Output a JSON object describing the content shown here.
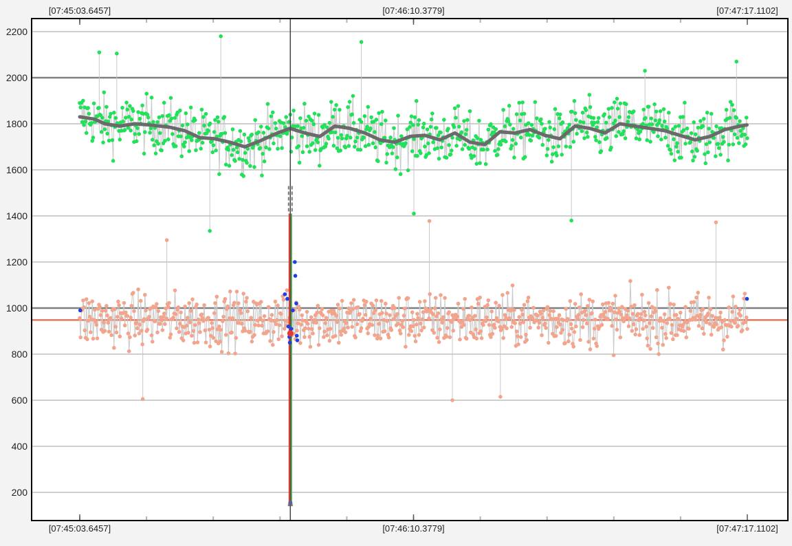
{
  "chart_data": {
    "type": "scatter",
    "title": "",
    "xlabel": "",
    "ylabel": "",
    "ylim": [
      100,
      2250
    ],
    "y_ticks": [
      200,
      400,
      600,
      800,
      1000,
      1200,
      1400,
      1600,
      1800,
      2000,
      2200
    ],
    "x_tick_labels_top": [
      "[07:45:03.6457]",
      "[07:46:10.3779]",
      "[07:47:17.1102]"
    ],
    "x_tick_labels_bottom": [
      "[07:45:03.6457]",
      "[07:46:10.3779]",
      "[07:47:17.1102]"
    ],
    "x_range_seconds": [
      0,
      133.4645
    ],
    "x_tick_values_seconds": [
      0,
      66.7322,
      133.4645
    ],
    "reference_lines": [
      {
        "y": 2000,
        "color": "#808080"
      },
      {
        "y": 1000,
        "color": "#808080"
      },
      {
        "y": 948,
        "color": "#e07a5f"
      }
    ],
    "cursor_x_seconds": 42.1,
    "grid": true,
    "series": [
      {
        "color": "#22e05a",
        "mean": 1770,
        "spread": 130,
        "outliers": [
          {
            "x": 28.2,
            "y": 2180
          },
          {
            "x": 56.3,
            "y": 2155
          },
          {
            "x": 26.0,
            "y": 1335
          },
          {
            "x": 66.8,
            "y": 1410
          },
          {
            "x": 98.3,
            "y": 1380
          },
          {
            "x": 3.9,
            "y": 2110
          },
          {
            "x": 7.4,
            "y": 2105
          },
          {
            "x": 113.0,
            "y": 2030
          },
          {
            "x": 131.3,
            "y": 2070
          }
        ],
        "trend": {
          "color": "#6a6a6a",
          "points": [
            [
              0,
              1830
            ],
            [
              3,
              1820
            ],
            [
              5,
              1800
            ],
            [
              8,
              1790
            ],
            [
              11,
              1800
            ],
            [
              14,
              1795
            ],
            [
              18,
              1785
            ],
            [
              21,
              1770
            ],
            [
              24,
              1740
            ],
            [
              27,
              1735
            ],
            [
              30,
              1720
            ],
            [
              33,
              1700
            ],
            [
              36,
              1725
            ],
            [
              39,
              1755
            ],
            [
              42,
              1780
            ],
            [
              45,
              1760
            ],
            [
              48,
              1745
            ],
            [
              51,
              1790
            ],
            [
              54,
              1780
            ],
            [
              57,
              1760
            ],
            [
              60,
              1730
            ],
            [
              63,
              1720
            ],
            [
              66,
              1745
            ],
            [
              69,
              1750
            ],
            [
              72,
              1730
            ],
            [
              75,
              1760
            ],
            [
              78,
              1720
            ],
            [
              81,
              1710
            ],
            [
              84,
              1765
            ],
            [
              87,
              1760
            ],
            [
              90,
              1775
            ],
            [
              93,
              1750
            ],
            [
              96,
              1735
            ],
            [
              99,
              1790
            ],
            [
              102,
              1780
            ],
            [
              105,
              1760
            ],
            [
              108,
              1800
            ],
            [
              111,
              1790
            ],
            [
              114,
              1780
            ],
            [
              117,
              1770
            ],
            [
              120,
              1750
            ],
            [
              123,
              1730
            ],
            [
              126,
              1745
            ],
            [
              129,
              1775
            ],
            [
              132,
              1790
            ],
            [
              133.4,
              1795
            ]
          ]
        }
      },
      {
        "color": "#f2a58c",
        "mean": 948,
        "spread": 115,
        "outliers": [
          {
            "x": 12.6,
            "y": 605
          },
          {
            "x": 74.5,
            "y": 600
          },
          {
            "x": 84.1,
            "y": 615
          },
          {
            "x": 17.4,
            "y": 1295
          },
          {
            "x": 69.9,
            "y": 1378
          },
          {
            "x": 127.2,
            "y": 1372
          }
        ]
      }
    ],
    "selection": {
      "x_seconds": 42.1,
      "line_colors": [
        "#e53935",
        "#43a047"
      ],
      "y_range": [
        140,
        1410
      ],
      "marker_color": "#e53935",
      "marker_y": 890,
      "points_color": "#1e40e0",
      "points": [
        {
          "x": 41.0,
          "y": 1060
        },
        {
          "x": 41.5,
          "y": 1040
        },
        {
          "x": 41.7,
          "y": 920
        },
        {
          "x": 41.9,
          "y": 875
        },
        {
          "x": 42.0,
          "y": 850
        },
        {
          "x": 42.3,
          "y": 910
        },
        {
          "x": 42.6,
          "y": 990
        },
        {
          "x": 43.0,
          "y": 1200
        },
        {
          "x": 43.1,
          "y": 1140
        },
        {
          "x": 43.3,
          "y": 1020
        },
        {
          "x": 43.4,
          "y": 880
        },
        {
          "x": 43.5,
          "y": 860
        },
        {
          "x": 0.1,
          "y": 990
        },
        {
          "x": 133.4,
          "y": 1040
        }
      ],
      "handles_color": "#7a7a7a"
    }
  }
}
